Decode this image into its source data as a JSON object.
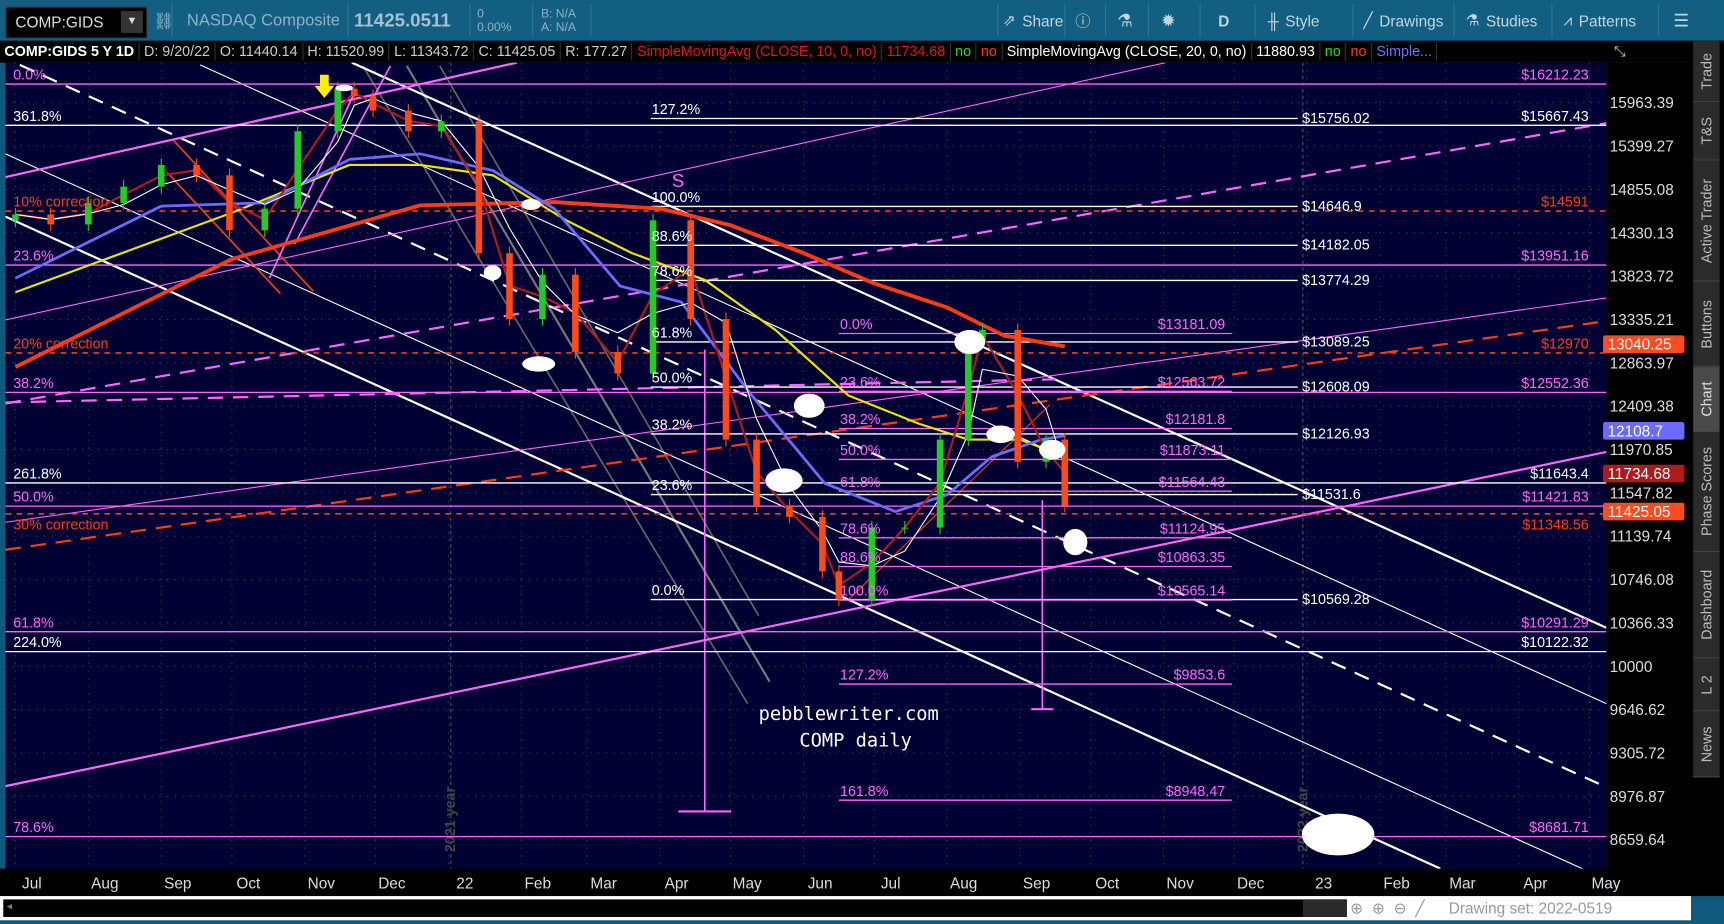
{
  "toolbar": {
    "symbol": "COMP:GIDS",
    "description": "NASDAQ Composite",
    "last_price": "11425.0511",
    "change": "0",
    "change_pct": "0.00%",
    "bid": "B: N/A",
    "ask": "A: N/A",
    "share_label": "Share",
    "period_label": "D",
    "style_label": "Style",
    "drawings_label": "Drawings",
    "studies_label": "Studies",
    "patterns_label": "Patterns"
  },
  "legend": {
    "title": "COMP:GIDS 5 Y 1D",
    "date": "D: 9/20/22",
    "open": "O: 11440.14",
    "high": "H: 11520.99",
    "low": "L: 11343.72",
    "close": "C: 11425.05",
    "range": "R: 177.27",
    "sma1": "SimpleMovingAvg (CLOSE, 10, 0, no)",
    "sma1_value": "11734.68",
    "sma1_no1": "no",
    "sma1_no2": "no",
    "sma2": "SimpleMovingAvg (CLOSE, 20, 0, no)",
    "sma2_value": "11880.93",
    "sma2_no1": "no",
    "sma2_no2": "no",
    "sma3": "Simple..."
  },
  "sidebar": {
    "tabs": [
      "Trade",
      "T&S",
      "Active Trader",
      "Buttons",
      "Chart",
      "Phase Scores",
      "Dashboard",
      "L 2",
      "News"
    ],
    "selected": "Chart"
  },
  "bottom": {
    "drawing_set": "Drawing set: 2022-0519"
  },
  "watermark": {
    "line1": "pebblewriter.com",
    "line2": "COMP daily"
  },
  "annotations": {
    "s_label": "S",
    "year_2021": "2021 year",
    "year_2022": "2022 year"
  },
  "colors": {
    "plot_bg": "#000033",
    "up": "#22cc22",
    "down": "#ff4a14",
    "magenta": "#ff66ff",
    "correction": "#ff3b14",
    "sma10": "#b01a1a",
    "sma20": "#ffffff",
    "blue_ma": "#6b6bff",
    "yellow_ma": "#e6e600",
    "red_ma": "#ff3b14"
  },
  "chart_data": {
    "type": "candlestick",
    "y_scale": "log",
    "y_ticks": [
      15963.39,
      15399.27,
      14855.08,
      14330.13,
      13823.72,
      13335.21,
      12863.97,
      12409.38,
      11970.85,
      11547.82,
      11139.74,
      10746.08,
      10366.33,
      10000,
      9646.62,
      9305.72,
      8976.87,
      8659.64
    ],
    "x_ticks": [
      {
        "label": "Jul",
        "date": "2021-07-01"
      },
      {
        "label": "Aug",
        "date": "2021-08-01"
      },
      {
        "label": "Sep",
        "date": "2021-09-01"
      },
      {
        "label": "Oct",
        "date": "2021-10-01"
      },
      {
        "label": "Nov",
        "date": "2021-11-01"
      },
      {
        "label": "Dec",
        "date": "2021-12-01"
      },
      {
        "label": "22",
        "date": "2022-01-01"
      },
      {
        "label": "Feb",
        "date": "2022-02-01"
      },
      {
        "label": "Mar",
        "date": "2022-03-01"
      },
      {
        "label": "Apr",
        "date": "2022-04-01"
      },
      {
        "label": "May",
        "date": "2022-05-01"
      },
      {
        "label": "Jun",
        "date": "2022-06-01"
      },
      {
        "label": "Jul",
        "date": "2022-07-01"
      },
      {
        "label": "Aug",
        "date": "2022-08-01"
      },
      {
        "label": "Sep",
        "date": "2022-09-01"
      },
      {
        "label": "Oct",
        "date": "2022-10-01"
      },
      {
        "label": "Nov",
        "date": "2022-11-01"
      },
      {
        "label": "Dec",
        "date": "2022-12-01"
      },
      {
        "label": "23",
        "date": "2023-01-01"
      },
      {
        "label": "Feb",
        "date": "2023-02-01"
      },
      {
        "label": "Mar",
        "date": "2023-03-01"
      },
      {
        "label": "Apr",
        "date": "2023-04-01"
      },
      {
        "label": "May",
        "date": "2023-05-01"
      }
    ],
    "closes": [
      [
        "2021-07-01",
        14550
      ],
      [
        "2021-07-16",
        14430
      ],
      [
        "2021-08-01",
        14690
      ],
      [
        "2021-08-16",
        14890
      ],
      [
        "2021-09-01",
        15160
      ],
      [
        "2021-09-16",
        15030
      ],
      [
        "2021-09-30",
        14360
      ],
      [
        "2021-10-15",
        14620
      ],
      [
        "2021-10-29",
        15590
      ],
      [
        "2021-11-15",
        16150
      ],
      [
        "2021-11-22",
        16050
      ],
      [
        "2021-11-30",
        15860
      ],
      [
        "2021-12-15",
        15590
      ],
      [
        "2021-12-29",
        15720
      ],
      [
        "2022-01-14",
        14090
      ],
      [
        "2022-01-27",
        13340
      ],
      [
        "2022-02-10",
        13840
      ],
      [
        "2022-02-24",
        12980
      ],
      [
        "2022-03-14",
        12750
      ],
      [
        "2022-03-29",
        14480
      ],
      [
        "2022-04-14",
        13340
      ],
      [
        "2022-04-29",
        12070
      ],
      [
        "2022-05-12",
        11430
      ],
      [
        "2022-05-26",
        11320
      ],
      [
        "2022-06-09",
        10820
      ],
      [
        "2022-06-16",
        10570
      ],
      [
        "2022-06-30",
        11220
      ],
      [
        "2022-07-14",
        11220
      ],
      [
        "2022-07-29",
        12070
      ],
      [
        "2022-08-10",
        13100
      ],
      [
        "2022-08-16",
        13220
      ],
      [
        "2022-08-31",
        11850
      ],
      [
        "2022-09-12",
        12070
      ],
      [
        "2022-09-20",
        11425.05
      ]
    ],
    "ma_lines": [
      {
        "key": "red",
        "value_label": "13040.25",
        "points": [
          [
            "2021-07-01",
            12820
          ],
          [
            "2021-10-01",
            14020
          ],
          [
            "2021-12-20",
            14660
          ],
          [
            "2022-02-15",
            14700
          ],
          [
            "2022-04-01",
            14620
          ],
          [
            "2022-05-01",
            14420
          ],
          [
            "2022-06-01",
            14090
          ],
          [
            "2022-07-01",
            13740
          ],
          [
            "2022-08-01",
            13470
          ],
          [
            "2022-08-25",
            13160
          ],
          [
            "2022-09-20",
            13040.25
          ]
        ]
      },
      {
        "key": "yellow",
        "points": [
          [
            "2021-07-01",
            13640
          ],
          [
            "2021-10-01",
            14570
          ],
          [
            "2021-11-20",
            15160
          ],
          [
            "2021-12-20",
            15160
          ],
          [
            "2022-01-20",
            15030
          ],
          [
            "2022-02-20",
            14480
          ],
          [
            "2022-03-20",
            14090
          ],
          [
            "2022-04-20",
            13780
          ],
          [
            "2022-05-20",
            13220
          ],
          [
            "2022-06-20",
            12520
          ],
          [
            "2022-07-20",
            12230
          ],
          [
            "2022-08-10",
            12070
          ],
          [
            "2022-09-01",
            12070
          ],
          [
            "2022-09-20",
            11900
          ]
        ]
      },
      {
        "key": "blue",
        "value_label": "12108.7",
        "points": [
          [
            "2021-07-01",
            13800
          ],
          [
            "2021-09-01",
            14650
          ],
          [
            "2021-10-15",
            14690
          ],
          [
            "2021-11-20",
            15230
          ],
          [
            "2021-12-20",
            15300
          ],
          [
            "2022-01-20",
            15090
          ],
          [
            "2022-02-15",
            14620
          ],
          [
            "2022-03-15",
            13710
          ],
          [
            "2022-04-10",
            13530
          ],
          [
            "2022-05-10",
            12520
          ],
          [
            "2022-06-10",
            11640
          ],
          [
            "2022-07-10",
            11370
          ],
          [
            "2022-08-01",
            11530
          ],
          [
            "2022-08-20",
            11900
          ],
          [
            "2022-09-10",
            12070
          ],
          [
            "2022-09-20",
            12108.7
          ]
        ]
      }
    ],
    "price_badges": [
      {
        "value": "13040.25",
        "price": 13040.25,
        "color": "#ff4b1f"
      },
      {
        "value": "12108.7",
        "price": 12108.7,
        "color": "#6b6bff"
      },
      {
        "value": "11734.68",
        "price": 11734.68,
        "color": "#b01a1a"
      },
      {
        "value": "11425.05",
        "price": 11425.05,
        "color": "#ff4b1f"
      }
    ],
    "levels": [
      {
        "label": "0.0%",
        "price_label": "$16212.23",
        "price": 16212.23,
        "color": "#ff66ff",
        "style": "solid"
      },
      {
        "label": "361.8%",
        "price_label": "$15667.43",
        "price": 15667.43,
        "color": "#ffffff",
        "style": "solid"
      },
      {
        "label": "10% correction",
        "price_label": "$14591",
        "price": 14591,
        "color": "#ff3b14",
        "style": "dashed"
      },
      {
        "label": "23.6%",
        "price_label": "$13951.16",
        "price": 13951.16,
        "color": "#ff66ff",
        "style": "solid"
      },
      {
        "label": "20% correction",
        "price_label": "$12970",
        "price": 12970,
        "color": "#ff3b14",
        "style": "dashed"
      },
      {
        "label": "38.2%",
        "price_label": "$12552.36",
        "price": 12552.36,
        "color": "#ff66ff",
        "style": "solid"
      },
      {
        "label": "261.8%",
        "price_label": "$11643.4",
        "price": 11643.4,
        "color": "#ffffff",
        "style": "solid"
      },
      {
        "label": "50.0%",
        "price_label": "$11421.83",
        "price": 11421.83,
        "color": "#ff66ff",
        "style": "solid"
      },
      {
        "label": "30% correction",
        "price_label": "$11348.56",
        "price": 11348.56,
        "color": "#ff3b14",
        "style": "dashed"
      },
      {
        "label": "61.8%",
        "price_label": "$10291.29",
        "price": 10291.29,
        "color": "#ff66ff",
        "style": "solid"
      },
      {
        "label": "224.0%",
        "price_label": "$10122.32",
        "price": 10122.32,
        "color": "#ffffff",
        "style": "solid"
      },
      {
        "label": "78.6%",
        "price_label": "$8681.71",
        "price": 8681.71,
        "color": "#ff66ff",
        "style": "solid"
      }
    ],
    "fib_sets": [
      {
        "color": "#ffffff",
        "start": "2022-03-28",
        "end": "2022-12-28",
        "levels": [
          {
            "label": "127.2%",
            "price_label": "$15756.02",
            "price": 15756.02
          },
          {
            "label": "100.0%",
            "price_label": "$14646.9",
            "price": 14646.9
          },
          {
            "label": "88.6%",
            "price_label": "$14182.05",
            "price": 14182.05
          },
          {
            "label": "78.6%",
            "price_label": "$13774.29",
            "price": 13774.29
          },
          {
            "label": "61.8%",
            "price_label": "$13089.25",
            "price": 13089.25
          },
          {
            "label": "50.0%",
            "price_label": "$12608.09",
            "price": 12608.09
          },
          {
            "label": "38.2%",
            "price_label": "$12126.93",
            "price": 12126.93
          },
          {
            "label": "23.6%",
            "price_label": "$11531.6",
            "price": 11531.6
          },
          {
            "label": "0.0%",
            "price_label": "$10569.28",
            "price": 10569.28
          }
        ]
      },
      {
        "color": "#ff66ff",
        "start": "2022-06-16",
        "end": "2022-11-30",
        "levels": [
          {
            "label": "0.0%",
            "price_label": "$13181.09",
            "price": 13181.09
          },
          {
            "label": "23.6%",
            "price_label": "$12563.72",
            "price": 12563.72
          },
          {
            "label": "38.2%",
            "price_label": "$12181.8",
            "price": 12181.8
          },
          {
            "label": "50.0%",
            "price_label": "$11873.11",
            "price": 11873.11
          },
          {
            "label": "61.8%",
            "price_label": "$11564.43",
            "price": 11564.43
          },
          {
            "label": "78.6%",
            "price_label": "$11124.95",
            "price": 11124.95
          },
          {
            "label": "88.6%",
            "price_label": "$10863.35",
            "price": 10863.35
          },
          {
            "label": "100.0%",
            "price_label": "$10565.14",
            "price": 10565.14
          },
          {
            "label": "127.2%",
            "price_label": "$9853.6",
            "price": 9853.6
          },
          {
            "label": "161.8%",
            "price_label": "$8948.47",
            "price": 8948.47
          }
        ]
      }
    ]
  }
}
